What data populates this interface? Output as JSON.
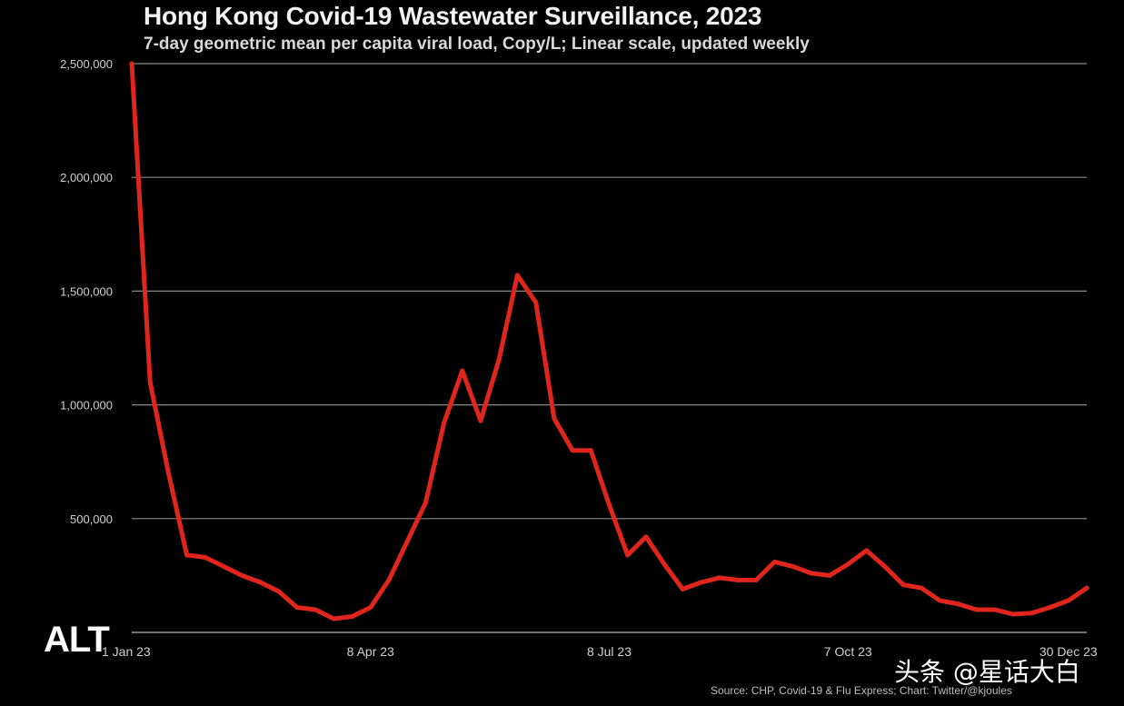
{
  "chart_data": {
    "type": "line",
    "title": "Hong Kong Covid-19 Wastewater Surveillance, 2023",
    "subtitle": "7-day geometric mean per capita viral load, Copy/L; Linear scale, updated weekly",
    "xlabel": "",
    "ylabel": "",
    "ylim": [
      0,
      2500000
    ],
    "yticks": [
      {
        "value": 500000,
        "label": "500,000"
      },
      {
        "value": 1000000,
        "label": "1,000,000"
      },
      {
        "value": 1500000,
        "label": "1,500,000"
      },
      {
        "value": 2000000,
        "label": "2,000,000"
      },
      {
        "value": 2500000,
        "label": "2,500,000"
      }
    ],
    "xticks": [
      {
        "week": 0,
        "label": "1 Jan 23"
      },
      {
        "week": 13,
        "label": "8 Apr 23"
      },
      {
        "week": 26,
        "label": "8 Jul 23"
      },
      {
        "week": 39,
        "label": "7 Oct 23"
      },
      {
        "week": 51,
        "label": "30 Dec 23"
      }
    ],
    "grid": true,
    "line_color": "#e0261c",
    "series": [
      {
        "values": [
          2500000,
          1100000,
          700000,
          340000,
          330000,
          290000,
          250000,
          220000,
          180000,
          110000,
          100000,
          60000,
          70000,
          110000,
          230000,
          400000,
          570000,
          920000,
          1150000,
          930000,
          1200000,
          1570000,
          1450000,
          940000,
          800000,
          800000,
          560000,
          340000,
          420000,
          300000,
          190000,
          220000,
          240000,
          230000,
          230000,
          310000,
          290000,
          260000,
          250000,
          300000,
          360000,
          290000,
          210000,
          195000,
          140000,
          125000,
          100000,
          100000,
          80000,
          85000,
          110000,
          140000,
          195000
        ]
      }
    ]
  },
  "overlay": {
    "badge": "ALT",
    "watermark": "头条 @星话大白",
    "source": "Source: CHP, Covid-19 & Flu Express; Chart: Twitter/@kjoules"
  }
}
